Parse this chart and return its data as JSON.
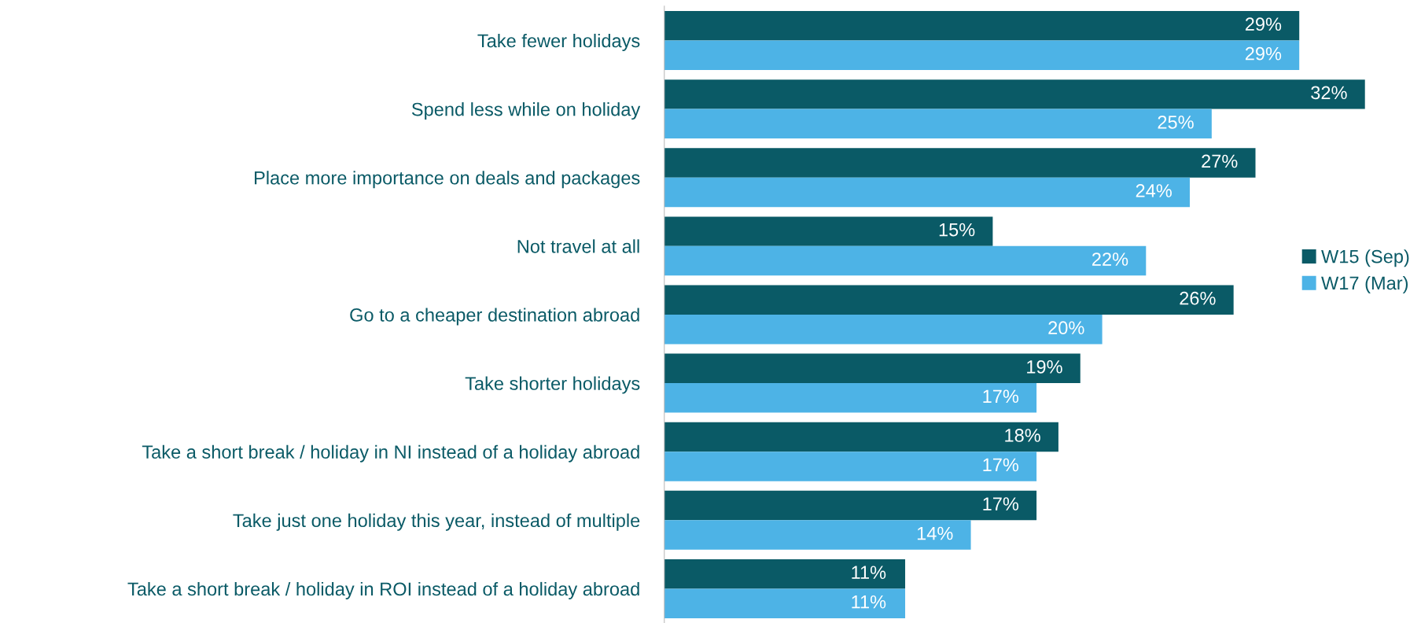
{
  "chart_data": {
    "type": "bar",
    "orientation": "horizontal",
    "legend": "right",
    "grid": false,
    "categories": [
      "Take fewer holidays",
      "Spend less while on holiday",
      "Place more importance on deals and packages",
      "Not travel at all",
      "Go to a cheaper destination abroad",
      "Take shorter holidays",
      "Take a short break / holiday in NI instead of a holiday abroad",
      "Take just one holiday this year, instead of multiple",
      "Take a short break / holiday in ROI instead of a holiday abroad"
    ],
    "series": [
      {
        "name": "W15 (Sep)",
        "color": "#0a5a66",
        "values": [
          29,
          32,
          27,
          15,
          26,
          19,
          18,
          17,
          11
        ],
        "value_labels": [
          "29%",
          "32%",
          "27%",
          "15%",
          "26%",
          "19%",
          "18%",
          "17%",
          "11%"
        ]
      },
      {
        "name": "W17 (Mar)",
        "color": "#4db3e6",
        "values": [
          29,
          25,
          24,
          22,
          20,
          17,
          17,
          14,
          11
        ],
        "value_labels": [
          "29%",
          "25%",
          "24%",
          "22%",
          "20%",
          "17%",
          "17%",
          "14%",
          "11%"
        ]
      }
    ]
  }
}
